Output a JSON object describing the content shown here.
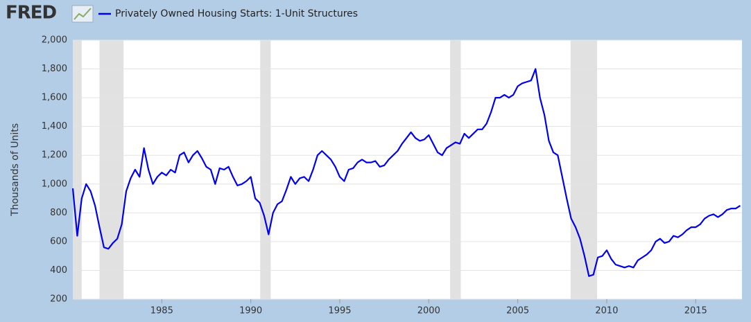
{
  "chart_data": {
    "type": "line",
    "logo": "FRED",
    "ylabel": "Thousands of Units",
    "x": [
      1980.0,
      1980.25,
      1980.5,
      1980.75,
      1981.0,
      1981.25,
      1981.5,
      1981.75,
      1982.0,
      1982.25,
      1982.5,
      1982.75,
      1983.0,
      1983.25,
      1983.5,
      1983.75,
      1984.0,
      1984.25,
      1984.5,
      1984.75,
      1985.0,
      1985.25,
      1985.5,
      1985.75,
      1986.0,
      1986.25,
      1986.5,
      1986.75,
      1987.0,
      1987.25,
      1987.5,
      1987.75,
      1988.0,
      1988.25,
      1988.5,
      1988.75,
      1989.0,
      1989.25,
      1989.5,
      1989.75,
      1990.0,
      1990.25,
      1990.5,
      1990.75,
      1991.0,
      1991.25,
      1991.5,
      1991.75,
      1992.0,
      1992.25,
      1992.5,
      1992.75,
      1993.0,
      1993.25,
      1993.5,
      1993.75,
      1994.0,
      1994.25,
      1994.5,
      1994.75,
      1995.0,
      1995.25,
      1995.5,
      1995.75,
      1996.0,
      1996.25,
      1996.5,
      1996.75,
      1997.0,
      1997.25,
      1997.5,
      1997.75,
      1998.0,
      1998.25,
      1998.5,
      1998.75,
      1999.0,
      1999.25,
      1999.5,
      1999.75,
      2000.0,
      2000.25,
      2000.5,
      2000.75,
      2001.0,
      2001.25,
      2001.5,
      2001.75,
      2002.0,
      2002.25,
      2002.5,
      2002.75,
      2003.0,
      2003.25,
      2003.5,
      2003.75,
      2004.0,
      2004.25,
      2004.5,
      2004.75,
      2005.0,
      2005.25,
      2005.5,
      2005.75,
      2006.0,
      2006.25,
      2006.5,
      2006.75,
      2007.0,
      2007.25,
      2007.5,
      2007.75,
      2008.0,
      2008.25,
      2008.5,
      2008.75,
      2009.0,
      2009.25,
      2009.5,
      2009.75,
      2010.0,
      2010.25,
      2010.5,
      2010.75,
      2011.0,
      2011.25,
      2011.5,
      2011.75,
      2012.0,
      2012.25,
      2012.5,
      2012.75,
      2013.0,
      2013.25,
      2013.5,
      2013.75,
      2014.0,
      2014.25,
      2014.5,
      2014.75,
      2015.0,
      2015.25,
      2015.5,
      2015.75,
      2016.0,
      2016.25,
      2016.5,
      2016.75,
      2017.0,
      2017.25,
      2017.5
    ],
    "series": [
      {
        "name": "Privately Owned Housing Starts: 1-Unit Structures",
        "color": "#0000ee",
        "values": [
          970,
          640,
          900,
          1000,
          950,
          850,
          700,
          560,
          550,
          590,
          620,
          720,
          950,
          1040,
          1100,
          1050,
          1250,
          1100,
          1000,
          1050,
          1080,
          1060,
          1100,
          1080,
          1200,
          1220,
          1150,
          1200,
          1230,
          1180,
          1120,
          1100,
          1000,
          1110,
          1100,
          1120,
          1050,
          990,
          1000,
          1020,
          1050,
          900,
          870,
          780,
          650,
          800,
          860,
          880,
          960,
          1050,
          1000,
          1040,
          1050,
          1020,
          1100,
          1200,
          1230,
          1200,
          1170,
          1120,
          1050,
          1020,
          1100,
          1110,
          1150,
          1170,
          1150,
          1150,
          1160,
          1120,
          1130,
          1170,
          1200,
          1230,
          1280,
          1320,
          1360,
          1320,
          1300,
          1310,
          1340,
          1280,
          1220,
          1200,
          1250,
          1270,
          1290,
          1280,
          1350,
          1320,
          1350,
          1380,
          1380,
          1420,
          1500,
          1600,
          1600,
          1620,
          1600,
          1620,
          1680,
          1700,
          1710,
          1720,
          1800,
          1600,
          1480,
          1300,
          1220,
          1200,
          1050,
          900,
          760,
          700,
          620,
          500,
          360,
          370,
          490,
          500,
          540,
          480,
          440,
          430,
          420,
          430,
          420,
          470,
          490,
          510,
          540,
          600,
          620,
          590,
          600,
          640,
          630,
          650,
          680,
          700,
          700,
          720,
          760,
          780,
          790,
          770,
          790,
          820,
          830,
          830,
          850
        ]
      }
    ],
    "recessions": [
      [
        1980.0,
        1980.5
      ],
      [
        1981.5,
        1982.85
      ],
      [
        1990.53,
        1991.12
      ],
      [
        2001.2,
        2001.8
      ],
      [
        2007.97,
        2009.46
      ]
    ],
    "xlim": [
      1980.0,
      2017.6
    ],
    "xticks": [
      1985,
      1990,
      1995,
      2000,
      2005,
      2010,
      2015
    ],
    "ylim": [
      200,
      2000
    ],
    "yticks": [
      200,
      400,
      600,
      800,
      {
        "value": 1000,
        "label": "1,000"
      },
      {
        "value": 1200,
        "label": "1,200"
      },
      {
        "value": 1400,
        "label": "1,400"
      },
      {
        "value": 1600,
        "label": "1,600"
      },
      {
        "value": 1800,
        "label": "1,800"
      },
      {
        "value": 2000,
        "label": "2,000"
      }
    ],
    "grid": true
  }
}
